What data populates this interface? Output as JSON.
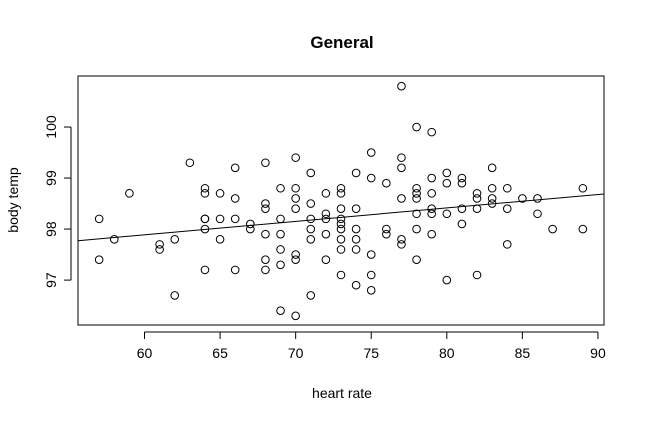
{
  "chart_data": {
    "type": "scatter",
    "title": "General",
    "xlabel": "heart rate",
    "ylabel": "body temp",
    "xlim": [
      55.6,
      90.4
    ],
    "ylim": [
      96.12,
      101.0
    ],
    "x_ticks": [
      60,
      65,
      70,
      75,
      80,
      85,
      90
    ],
    "y_ticks": [
      97,
      98,
      99,
      100
    ],
    "grid": false,
    "marker": "open-circle",
    "regression_line": {
      "intercept": 96.31,
      "slope": 0.0263
    },
    "points": [
      {
        "x": 57,
        "y": 98.2
      },
      {
        "x": 57,
        "y": 97.4
      },
      {
        "x": 58,
        "y": 97.8
      },
      {
        "x": 59,
        "y": 98.7
      },
      {
        "x": 61,
        "y": 97.7
      },
      {
        "x": 61,
        "y": 97.6
      },
      {
        "x": 62,
        "y": 97.8
      },
      {
        "x": 62,
        "y": 96.7
      },
      {
        "x": 63,
        "y": 99.3
      },
      {
        "x": 64,
        "y": 98.8
      },
      {
        "x": 64,
        "y": 98.7
      },
      {
        "x": 64,
        "y": 98.2
      },
      {
        "x": 64,
        "y": 98.2
      },
      {
        "x": 64,
        "y": 98.0
      },
      {
        "x": 64,
        "y": 97.2
      },
      {
        "x": 65,
        "y": 98.7
      },
      {
        "x": 65,
        "y": 98.2
      },
      {
        "x": 65,
        "y": 97.8
      },
      {
        "x": 66,
        "y": 99.2
      },
      {
        "x": 66,
        "y": 98.6
      },
      {
        "x": 66,
        "y": 98.2
      },
      {
        "x": 66,
        "y": 97.2
      },
      {
        "x": 67,
        "y": 98.1
      },
      {
        "x": 67,
        "y": 98.0
      },
      {
        "x": 68,
        "y": 99.3
      },
      {
        "x": 68,
        "y": 98.5
      },
      {
        "x": 68,
        "y": 98.4
      },
      {
        "x": 68,
        "y": 97.9
      },
      {
        "x": 68,
        "y": 97.4
      },
      {
        "x": 68,
        "y": 97.2
      },
      {
        "x": 69,
        "y": 98.8
      },
      {
        "x": 69,
        "y": 98.2
      },
      {
        "x": 69,
        "y": 97.9
      },
      {
        "x": 69,
        "y": 97.6
      },
      {
        "x": 69,
        "y": 97.3
      },
      {
        "x": 69,
        "y": 96.4
      },
      {
        "x": 70,
        "y": 99.4
      },
      {
        "x": 70,
        "y": 98.8
      },
      {
        "x": 70,
        "y": 98.6
      },
      {
        "x": 70,
        "y": 98.4
      },
      {
        "x": 70,
        "y": 97.5
      },
      {
        "x": 70,
        "y": 97.4
      },
      {
        "x": 70,
        "y": 96.3
      },
      {
        "x": 71,
        "y": 99.1
      },
      {
        "x": 71,
        "y": 98.5
      },
      {
        "x": 71,
        "y": 98.2
      },
      {
        "x": 71,
        "y": 98.0
      },
      {
        "x": 71,
        "y": 97.8
      },
      {
        "x": 71,
        "y": 96.7
      },
      {
        "x": 72,
        "y": 98.7
      },
      {
        "x": 72,
        "y": 98.3
      },
      {
        "x": 72,
        "y": 98.2
      },
      {
        "x": 72,
        "y": 97.9
      },
      {
        "x": 72,
        "y": 97.4
      },
      {
        "x": 73,
        "y": 98.8
      },
      {
        "x": 73,
        "y": 98.7
      },
      {
        "x": 73,
        "y": 98.4
      },
      {
        "x": 73,
        "y": 98.2
      },
      {
        "x": 73,
        "y": 98.1
      },
      {
        "x": 73,
        "y": 98.0
      },
      {
        "x": 73,
        "y": 97.8
      },
      {
        "x": 73,
        "y": 97.6
      },
      {
        "x": 73,
        "y": 97.1
      },
      {
        "x": 74,
        "y": 99.1
      },
      {
        "x": 74,
        "y": 98.4
      },
      {
        "x": 74,
        "y": 98.0
      },
      {
        "x": 74,
        "y": 97.8
      },
      {
        "x": 74,
        "y": 97.6
      },
      {
        "x": 74,
        "y": 96.9
      },
      {
        "x": 75,
        "y": 99.5
      },
      {
        "x": 75,
        "y": 99.0
      },
      {
        "x": 75,
        "y": 97.5
      },
      {
        "x": 75,
        "y": 97.1
      },
      {
        "x": 75,
        "y": 96.8
      },
      {
        "x": 76,
        "y": 98.9
      },
      {
        "x": 76,
        "y": 98.0
      },
      {
        "x": 76,
        "y": 97.9
      },
      {
        "x": 77,
        "y": 100.8
      },
      {
        "x": 77,
        "y": 99.4
      },
      {
        "x": 77,
        "y": 99.2
      },
      {
        "x": 77,
        "y": 98.6
      },
      {
        "x": 77,
        "y": 97.8
      },
      {
        "x": 77,
        "y": 97.7
      },
      {
        "x": 78,
        "y": 100.0
      },
      {
        "x": 78,
        "y": 98.8
      },
      {
        "x": 78,
        "y": 98.7
      },
      {
        "x": 78,
        "y": 98.6
      },
      {
        "x": 78,
        "y": 98.3
      },
      {
        "x": 78,
        "y": 98.0
      },
      {
        "x": 78,
        "y": 97.4
      },
      {
        "x": 79,
        "y": 99.9
      },
      {
        "x": 79,
        "y": 99.0
      },
      {
        "x": 79,
        "y": 98.7
      },
      {
        "x": 79,
        "y": 98.4
      },
      {
        "x": 79,
        "y": 98.3
      },
      {
        "x": 79,
        "y": 97.9
      },
      {
        "x": 80,
        "y": 99.1
      },
      {
        "x": 80,
        "y": 98.9
      },
      {
        "x": 80,
        "y": 98.3
      },
      {
        "x": 80,
        "y": 97.0
      },
      {
        "x": 81,
        "y": 99.0
      },
      {
        "x": 81,
        "y": 98.9
      },
      {
        "x": 81,
        "y": 98.4
      },
      {
        "x": 81,
        "y": 98.1
      },
      {
        "x": 82,
        "y": 98.7
      },
      {
        "x": 82,
        "y": 98.6
      },
      {
        "x": 82,
        "y": 98.4
      },
      {
        "x": 82,
        "y": 97.1
      },
      {
        "x": 83,
        "y": 99.2
      },
      {
        "x": 83,
        "y": 98.8
      },
      {
        "x": 83,
        "y": 98.6
      },
      {
        "x": 83,
        "y": 98.5
      },
      {
        "x": 84,
        "y": 98.8
      },
      {
        "x": 84,
        "y": 98.4
      },
      {
        "x": 84,
        "y": 97.7
      },
      {
        "x": 85,
        "y": 98.6
      },
      {
        "x": 86,
        "y": 98.6
      },
      {
        "x": 86,
        "y": 98.3
      },
      {
        "x": 87,
        "y": 98.0
      },
      {
        "x": 89,
        "y": 98.8
      },
      {
        "x": 89,
        "y": 98.0
      }
    ]
  }
}
